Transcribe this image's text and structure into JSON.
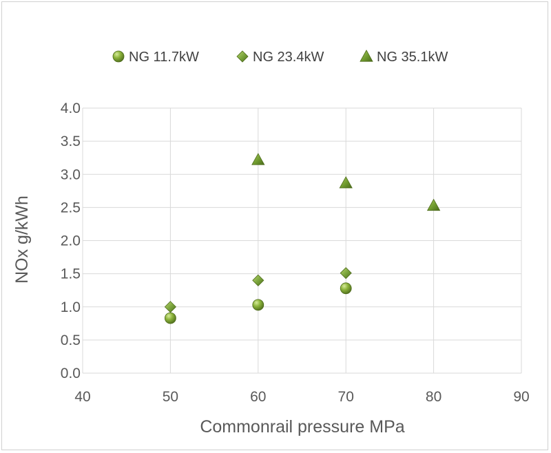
{
  "chart_data": {
    "type": "scatter",
    "title": "",
    "xlabel": "Commonrail pressure  MPa",
    "ylabel": "NOx    g/kWh",
    "xlim": [
      40,
      90
    ],
    "ylim": [
      0.0,
      4.0
    ],
    "xticks": [
      "40",
      "50",
      "60",
      "70",
      "80",
      "90"
    ],
    "yticks": [
      "0.0",
      "0.5",
      "1.0",
      "1.5",
      "2.0",
      "2.5",
      "3.0",
      "3.5",
      "4.0"
    ],
    "grid": "vertical and horizontal",
    "legend_position": "top",
    "series": [
      {
        "name": "NG 11.7kW",
        "marker": "circle",
        "color": "#8db33a",
        "points": [
          {
            "x": 50,
            "y": 0.83
          },
          {
            "x": 60,
            "y": 1.03
          },
          {
            "x": 70,
            "y": 1.28
          }
        ]
      },
      {
        "name": "NG 23.4kW",
        "marker": "diamond",
        "color": "#77a136",
        "points": [
          {
            "x": 50,
            "y": 1.0
          },
          {
            "x": 60,
            "y": 1.4
          },
          {
            "x": 70,
            "y": 1.51
          }
        ]
      },
      {
        "name": "NG 35.1kW",
        "marker": "triangle",
        "color": "#6f9a2e",
        "points": [
          {
            "x": 60,
            "y": 3.22
          },
          {
            "x": 70,
            "y": 2.87
          },
          {
            "x": 80,
            "y": 2.53
          }
        ]
      }
    ]
  }
}
